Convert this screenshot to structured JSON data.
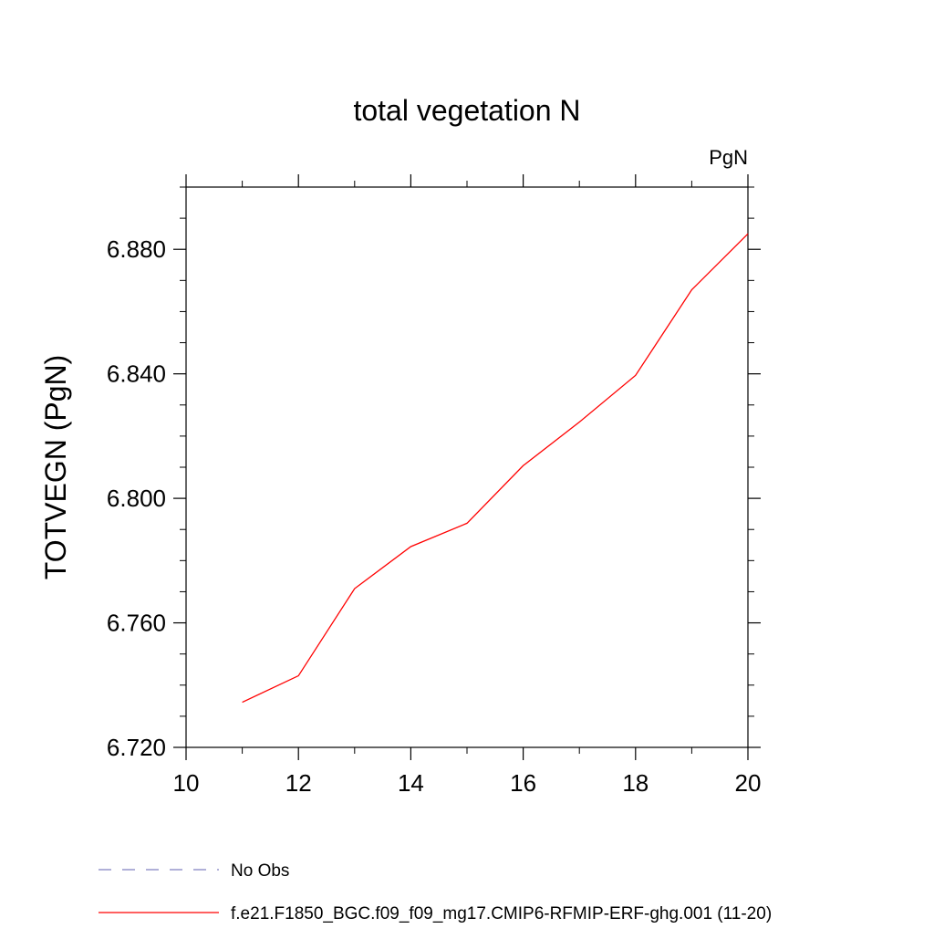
{
  "chart_data": {
    "type": "line",
    "title": "total vegetation N",
    "units_label": "PgN",
    "xlabel": "",
    "ylabel": "TOTVEGN  (PgN)",
    "xlim": [
      10,
      20
    ],
    "ylim": [
      6.72,
      6.9
    ],
    "x_ticks": [
      10,
      12,
      14,
      16,
      18,
      20
    ],
    "x_tick_labels": [
      "10",
      "12",
      "14",
      "16",
      "18",
      "20"
    ],
    "y_ticks": [
      6.72,
      6.76,
      6.8,
      6.84,
      6.88
    ],
    "y_tick_labels": [
      "6.720",
      "6.760",
      "6.800",
      "6.840",
      "6.880"
    ],
    "x_minor_step": 1,
    "y_minor_step": 0.01,
    "grid": false,
    "legend_position": "bottom-left",
    "series": [
      {
        "name": "f.e21.F1850_BGC.f09_f09_mg17.CMIP6-RFMIP-ERF-ghg.001 (11-20)",
        "color": "#ff0000",
        "dash": "solid",
        "x": [
          11,
          12,
          13,
          14,
          15,
          16,
          17,
          18,
          19,
          20
        ],
        "y": [
          6.7345,
          6.743,
          6.771,
          6.7845,
          6.792,
          6.8105,
          6.8245,
          6.8395,
          6.867,
          6.885
        ]
      }
    ],
    "legend": [
      {
        "label": "No Obs",
        "color": "#8080c0",
        "dash": "dashed"
      },
      {
        "label": "f.e21.F1850_BGC.f09_f09_mg17.CMIP6-RFMIP-ERF-ghg.001 (11-20)",
        "color": "#ff0000",
        "dash": "solid"
      }
    ]
  }
}
